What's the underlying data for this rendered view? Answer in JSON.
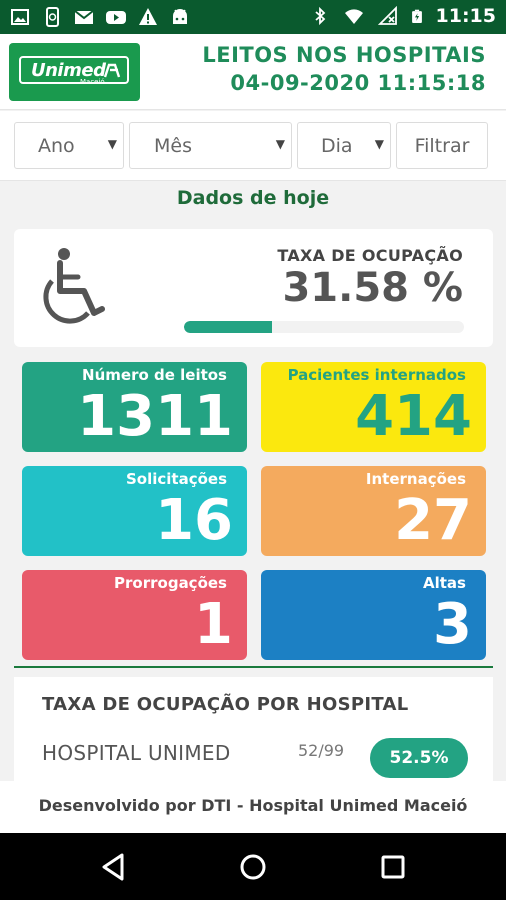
{
  "status_bar": {
    "time": "11:15",
    "left_icons": [
      "image-icon",
      "phone-sync-icon",
      "mail-icon",
      "youtube-icon",
      "warning-icon",
      "android-icon"
    ],
    "right_icons": [
      "bluetooth-icon",
      "wifi-icon",
      "no-signal-icon",
      "battery-charging-icon"
    ]
  },
  "header": {
    "logo_text": "Unimed",
    "logo_sub": "Maceió",
    "title": "LEITOS NOS HOSPITAIS",
    "datetime": "04-09-2020 11:15:18"
  },
  "filters": {
    "year": "Ano",
    "month": "Mês",
    "day": "Dia",
    "filter_button": "Filtrar"
  },
  "today_label": "Dados de hoje",
  "occupancy": {
    "label": "TAXA DE OCUPAÇÃO",
    "value": "31.58 %",
    "progress_fraction": 0.3158
  },
  "tiles": [
    {
      "label": "Número de leitos",
      "value": "1311",
      "bg": "#23a383",
      "fg": "#ffffff",
      "label_color": "#ffffff"
    },
    {
      "label": "Pacientes internados",
      "value": "414",
      "bg": "#fbe80e",
      "fg": "#23a383",
      "label_color": "#23a383"
    },
    {
      "label": "Solicitações",
      "value": "16",
      "bg": "#22c1c7",
      "fg": "#ffffff",
      "label_color": "#ffffff"
    },
    {
      "label": "Internações",
      "value": "27",
      "bg": "#f4aa5e",
      "fg": "#ffffff",
      "label_color": "#ffffff"
    },
    {
      "label": "Prorrogações",
      "value": "1",
      "bg": "#e85a6a",
      "fg": "#ffffff",
      "label_color": "#ffffff"
    },
    {
      "label": "Altas",
      "value": "3",
      "bg": "#1c80c4",
      "fg": "#ffffff",
      "label_color": "#ffffff"
    }
  ],
  "hospitals": {
    "title": "TAXA DE OCUPAÇÃO POR HOSPITAL",
    "rows": [
      {
        "name": "HOSPITAL UNIMED",
        "count": "52/99",
        "rate": "52.5%"
      }
    ]
  },
  "footer": "Desenvolvido por DTI - Hospital Unimed Maceió",
  "colors": {
    "brand_green": "#1a9a4e",
    "status_bar": "#0a5a2e",
    "accent_teal": "#23a383"
  }
}
